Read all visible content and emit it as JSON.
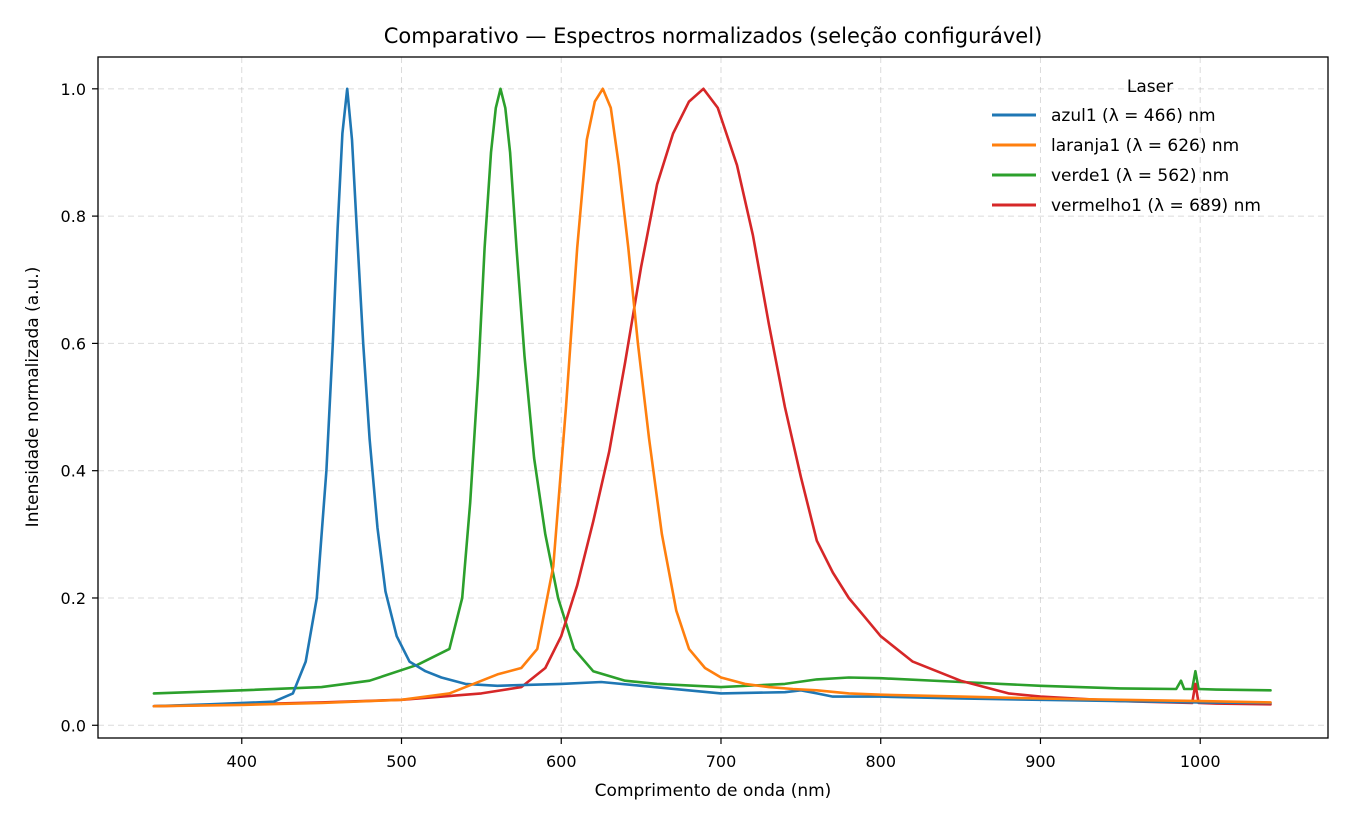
{
  "chart_data": {
    "type": "line",
    "title": "Comparativo — Espectros normalizados (seleção configurável)",
    "xlabel": "Comprimento de onda (nm)",
    "ylabel": "Intensidade normalizada (a.u.)",
    "xlim": [
      310,
      1080
    ],
    "ylim": [
      -0.02,
      1.05
    ],
    "xticks": [
      400,
      500,
      600,
      700,
      800,
      900,
      1000
    ],
    "yticks": [
      0.0,
      0.2,
      0.4,
      0.6,
      0.8,
      1.0
    ],
    "ytick_labels": [
      "0.0",
      "0.2",
      "0.4",
      "0.6",
      "0.8",
      "1.0"
    ],
    "xtick_labels": [
      "400",
      "500",
      "600",
      "700",
      "800",
      "900",
      "1000"
    ],
    "grid": true,
    "legend": {
      "title": "Laser",
      "position": "top-right"
    },
    "series": [
      {
        "name": "azul1 (λ = 466) nm",
        "color": "#1f77b4",
        "x": [
          345,
          380,
          420,
          432,
          440,
          447,
          453,
          457,
          460,
          463,
          466,
          469,
          472,
          476,
          480,
          485,
          490,
          497,
          505,
          515,
          525,
          540,
          560,
          600,
          625,
          650,
          700,
          740,
          750,
          760,
          770,
          800,
          850,
          900,
          950,
          1000,
          1044
        ],
        "y": [
          0.03,
          0.033,
          0.037,
          0.05,
          0.1,
          0.2,
          0.4,
          0.6,
          0.78,
          0.93,
          1.0,
          0.92,
          0.78,
          0.6,
          0.45,
          0.31,
          0.21,
          0.14,
          0.1,
          0.085,
          0.075,
          0.065,
          0.062,
          0.065,
          0.068,
          0.062,
          0.05,
          0.052,
          0.055,
          0.05,
          0.045,
          0.045,
          0.042,
          0.04,
          0.038,
          0.036,
          0.035
        ]
      },
      {
        "name": "laranja1 (λ = 626) nm",
        "color": "#ff7f0e",
        "x": [
          345,
          400,
          450,
          500,
          530,
          545,
          560,
          575,
          585,
          595,
          603,
          610,
          616,
          621,
          626,
          631,
          636,
          642,
          648,
          655,
          663,
          672,
          680,
          690,
          700,
          715,
          730,
          745,
          760,
          780,
          800,
          850,
          900,
          950,
          1000,
          1044
        ],
        "y": [
          0.03,
          0.032,
          0.035,
          0.04,
          0.05,
          0.065,
          0.08,
          0.09,
          0.12,
          0.25,
          0.5,
          0.75,
          0.92,
          0.98,
          1.0,
          0.97,
          0.88,
          0.75,
          0.6,
          0.45,
          0.3,
          0.18,
          0.12,
          0.09,
          0.075,
          0.065,
          0.06,
          0.057,
          0.055,
          0.05,
          0.048,
          0.045,
          0.042,
          0.04,
          0.038,
          0.036
        ]
      },
      {
        "name": "verde1 (λ = 562) nm",
        "color": "#2ca02c",
        "x": [
          345,
          400,
          450,
          480,
          510,
          530,
          538,
          543,
          548,
          552,
          556,
          559,
          562,
          565,
          568,
          572,
          577,
          583,
          590,
          598,
          608,
          620,
          640,
          660,
          700,
          740,
          760,
          780,
          800,
          850,
          900,
          950,
          985,
          988,
          990,
          995,
          997,
          999,
          1010,
          1044
        ],
        "y": [
          0.05,
          0.055,
          0.06,
          0.07,
          0.095,
          0.12,
          0.2,
          0.35,
          0.55,
          0.75,
          0.9,
          0.97,
          1.0,
          0.97,
          0.9,
          0.75,
          0.58,
          0.42,
          0.3,
          0.2,
          0.12,
          0.085,
          0.07,
          0.065,
          0.06,
          0.065,
          0.072,
          0.075,
          0.074,
          0.068,
          0.062,
          0.058,
          0.057,
          0.07,
          0.057,
          0.057,
          0.085,
          0.057,
          0.056,
          0.055
        ]
      },
      {
        "name": "vermelho1 (λ = 689) nm",
        "color": "#d62728",
        "x": [
          345,
          400,
          450,
          500,
          550,
          575,
          590,
          600,
          610,
          620,
          630,
          640,
          650,
          660,
          670,
          680,
          689,
          698,
          710,
          720,
          730,
          740,
          750,
          760,
          770,
          780,
          790,
          800,
          820,
          850,
          880,
          900,
          950,
          995,
          997,
          999,
          1010,
          1044
        ],
        "y": [
          0.03,
          0.033,
          0.036,
          0.04,
          0.05,
          0.06,
          0.09,
          0.14,
          0.22,
          0.32,
          0.43,
          0.57,
          0.72,
          0.85,
          0.93,
          0.98,
          1.0,
          0.97,
          0.88,
          0.77,
          0.63,
          0.5,
          0.39,
          0.29,
          0.24,
          0.2,
          0.17,
          0.14,
          0.1,
          0.07,
          0.05,
          0.045,
          0.038,
          0.035,
          0.065,
          0.035,
          0.034,
          0.033
        ]
      }
    ]
  }
}
